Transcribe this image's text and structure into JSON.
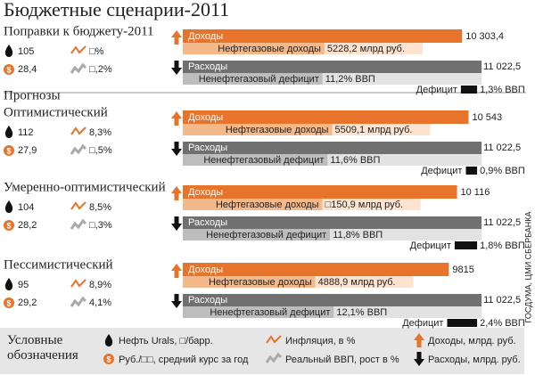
{
  "title": "Бюджетные сценарии-2011",
  "forecasts_label": "Прогнозы",
  "labels": {
    "revenue": "Доходы",
    "oilgas": "Нефтегазовые доходы",
    "expenses": "Расходы",
    "nonoil": "Ненефтегазовый дефицит",
    "deficit": "Дефицит"
  },
  "blocks": [
    {
      "name": "Поправки к бюджету-2011",
      "oil": "105",
      "inflation": "□%",
      "rub": "28,4",
      "gdp": "□,2%",
      "revenue": 10303.4,
      "revenue_label": "10 303,4",
      "oilgas": 5228.2,
      "oilgas_label": "5228,2 млрд руб.",
      "expenses": 11022.5,
      "expenses_label": "11 022,5",
      "nonoil": 11.2,
      "nonoil_label": "11,2% ВВП",
      "deficit": 1.3,
      "deficit_label": "1,3% ВВП"
    },
    {
      "name": "Оптимистический",
      "oil": "112",
      "inflation": "8,3%",
      "rub": "27,9",
      "gdp": "□,5%",
      "revenue": 10543,
      "revenue_label": "10 543",
      "oilgas": 5509.1,
      "oilgas_label": "5509,1 млрд руб.",
      "expenses": 11022.5,
      "expenses_label": "11 022,5",
      "nonoil": 11.6,
      "nonoil_label": "11,6% ВВП",
      "deficit": 0.9,
      "deficit_label": "0,9% ВВП"
    },
    {
      "name": "Умеренно-оптимистический",
      "oil": "104",
      "inflation": "8,5%",
      "rub": "28,2",
      "gdp": "□,3%",
      "revenue": 10116,
      "revenue_label": "10 116",
      "oilgas": 5150.9,
      "oilgas_label": "□150,9 млрд руб.",
      "expenses": 11022.5,
      "expenses_label": "11 022,5",
      "nonoil": 11.8,
      "nonoil_label": "11,8% ВВП",
      "deficit": 1.8,
      "deficit_label": "1,8% ВВП"
    },
    {
      "name": "Пессимистический",
      "oil": "95",
      "inflation": "8,9%",
      "rub": "29,2",
      "gdp": "4,1%",
      "revenue": 9815,
      "revenue_label": "9815",
      "oilgas": 4888.9,
      "oilgas_label": "4888,9 млрд руб.",
      "expenses": 11022.5,
      "expenses_label": "11 022,5",
      "nonoil": 12.1,
      "nonoil_label": "12,1% ВВП",
      "deficit": 2.4,
      "deficit_label": "2,4% ВВП"
    }
  ],
  "legend": {
    "title": "Условные обозначения",
    "oil": "Нефть Urals, □/барр.",
    "rub": "Руб./□□, средний курс за год",
    "inflation": "Инфляция, в %",
    "gdp": "Реальный ВВП, рост в %",
    "revenue": "Доходы, млрд. руб.",
    "expenses": "Расходы, млрд. руб."
  },
  "source": "ГОСДУМА, ЦМИ СБЕРБАНКА"
}
